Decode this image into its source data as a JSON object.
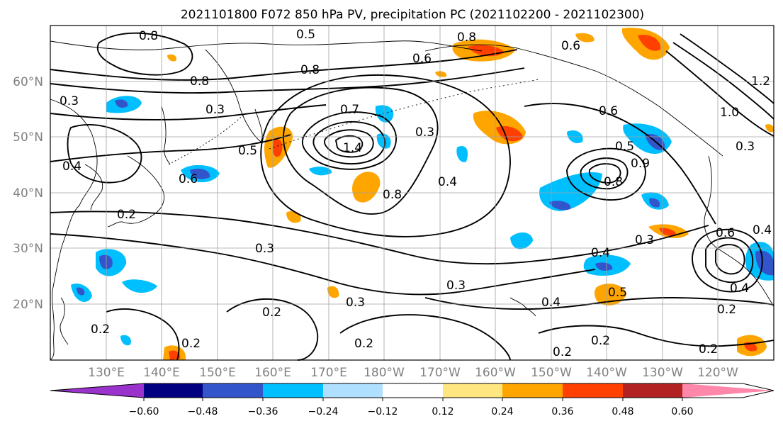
{
  "title": "2021101800 F072 850 hPa PV, precipitation PC (2021102200 - 2021102300)",
  "lat_labels": [
    "60°N",
    "50°N",
    "40°N",
    "30°N",
    "20°N"
  ],
  "lon_labels": [
    "130°E",
    "140°E",
    "150°E",
    "160°E",
    "170°E",
    "180°W",
    "170°W",
    "160°W",
    "150°W",
    "140°W",
    "130°W",
    "120°W"
  ],
  "contour_labels": [
    {
      "text": "0.8"
    },
    {
      "text": "0.5"
    },
    {
      "text": "0.8"
    },
    {
      "text": "0.6"
    },
    {
      "text": "0.8"
    },
    {
      "text": "0.7"
    },
    {
      "text": "0.8"
    },
    {
      "text": "0.3"
    },
    {
      "text": "0.3"
    },
    {
      "text": "0.5"
    },
    {
      "text": "0.6"
    },
    {
      "text": "1.4"
    },
    {
      "text": "0.8"
    },
    {
      "text": "0.3"
    },
    {
      "text": "0.4"
    },
    {
      "text": "0.8"
    },
    {
      "text": "0.6"
    },
    {
      "text": "0.5"
    },
    {
      "text": "0.9"
    },
    {
      "text": "0.4"
    },
    {
      "text": "0.2"
    },
    {
      "text": "0.3"
    },
    {
      "text": "0.4"
    },
    {
      "text": "0.3"
    },
    {
      "text": "0.3"
    },
    {
      "text": "0.3"
    },
    {
      "text": "0.2"
    },
    {
      "text": "0.4"
    },
    {
      "text": "0.5"
    },
    {
      "text": "0.4"
    },
    {
      "text": "0.2"
    },
    {
      "text": "0.2"
    },
    {
      "text": "0.2"
    },
    {
      "text": "0.2"
    },
    {
      "text": "0.2"
    },
    {
      "text": "0.2"
    },
    {
      "text": "0.2"
    },
    {
      "text": "1.2"
    },
    {
      "text": "1.0"
    },
    {
      "text": "0.6"
    },
    {
      "text": "0.4"
    },
    {
      "text": "0.3"
    },
    {
      "text": "0.6"
    }
  ],
  "colorbar": {
    "ticks": [
      "−0.60",
      "−0.48",
      "−0.36",
      "−0.24",
      "−0.12",
      "0.12",
      "0.24",
      "0.36",
      "0.48",
      "0.60"
    ],
    "colors": [
      "#9933cc",
      "#000080",
      "#3355cc",
      "#00bfff",
      "#b0e0ff",
      "#ffffff",
      "#ffe680",
      "#ffa500",
      "#ff4000",
      "#b22222",
      "#ff88aa"
    ]
  },
  "colors": {
    "neg_strong": "#3355cc",
    "neg_mid": "#00bfff",
    "pos_mid": "#ffa500",
    "pos_strong": "#ff4000",
    "pos_light": "#ffe680",
    "grid": "#a0a0a0",
    "axis_label": "#808080"
  }
}
